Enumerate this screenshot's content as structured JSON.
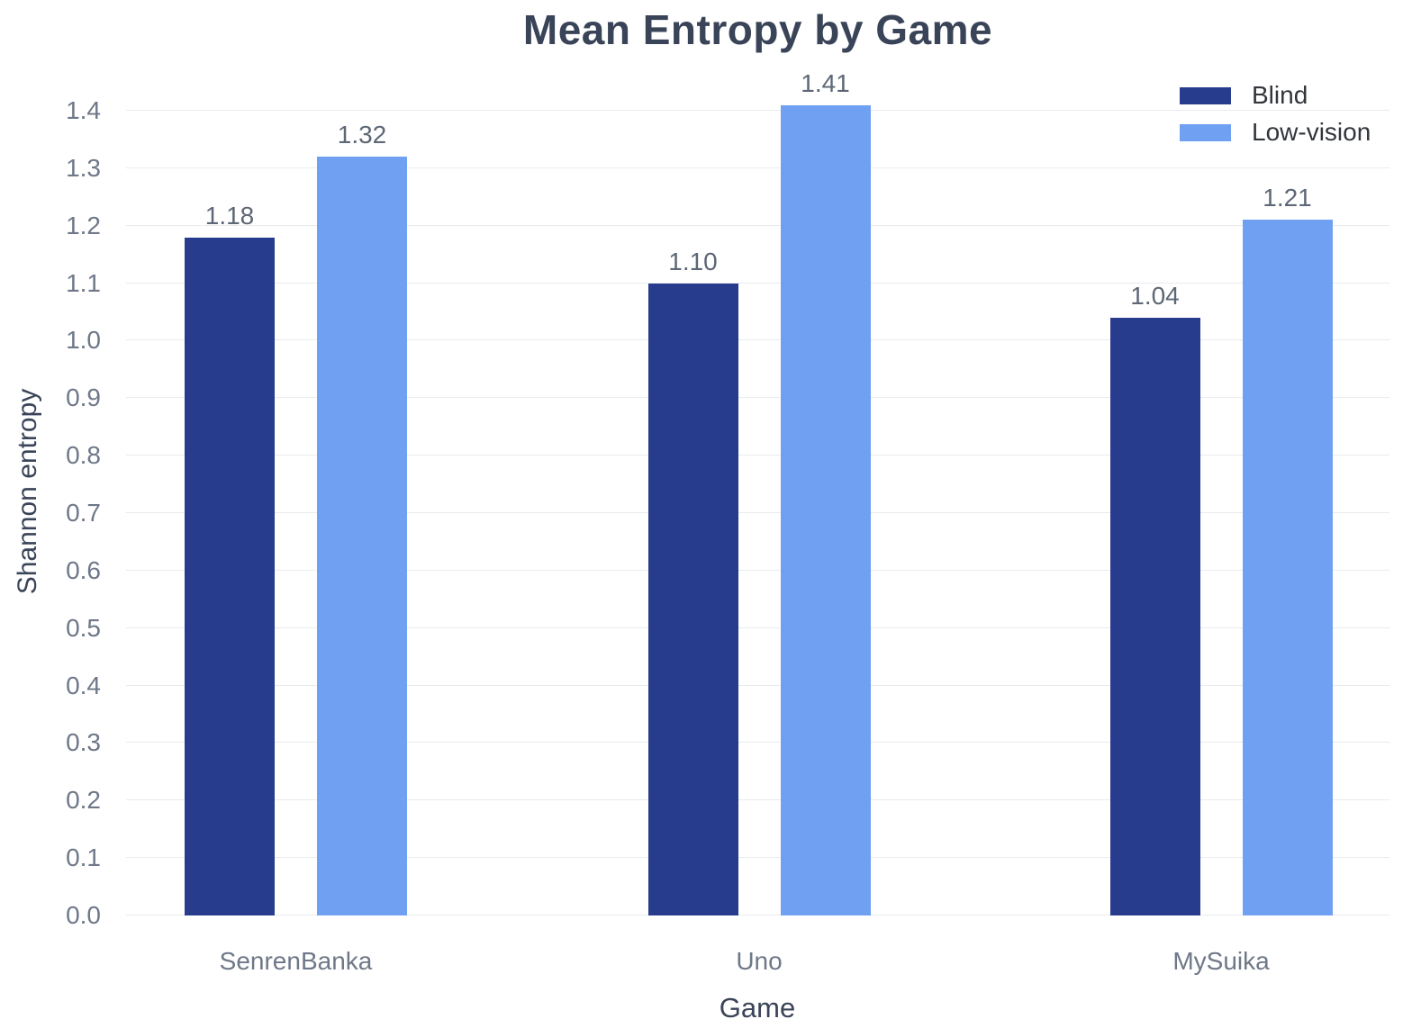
{
  "chart_data": {
    "type": "bar",
    "title": "Mean Entropy by Game",
    "xlabel": "Game",
    "ylabel": "Shannon entropy",
    "categories": [
      "SenrenBanka",
      "Uno",
      "MySuika"
    ],
    "series": [
      {
        "name": "Blind",
        "color": "#273c8c",
        "values": [
          1.18,
          1.1,
          1.04
        ],
        "labels": [
          "1.18",
          "1.10",
          "1.04"
        ]
      },
      {
        "name": "Low-vision",
        "color": "#6fa0f2",
        "values": [
          1.32,
          1.41,
          1.21
        ],
        "labels": [
          "1.32",
          "1.41",
          "1.21"
        ]
      }
    ],
    "ylim": [
      0,
      1.45
    ],
    "yticks": [
      "0.0",
      "0.1",
      "0.2",
      "0.3",
      "0.4",
      "0.5",
      "0.6",
      "0.7",
      "0.8",
      "0.9",
      "1.0",
      "1.1",
      "1.2",
      "1.3",
      "1.4"
    ],
    "grid": true,
    "grid_color": "#e9ebef",
    "background_color": "#ffffff",
    "legend_position": "top-right"
  }
}
